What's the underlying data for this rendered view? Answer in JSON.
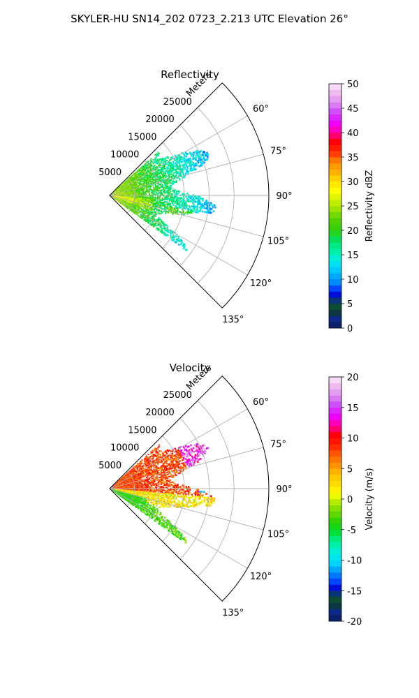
{
  "figure_title": "SKYLER-HU  SN14_202  0723_2.213 UTC Elevation 26°",
  "chart_data": [
    {
      "type": "heatmap",
      "projection": "polar-sector",
      "title": "Reflectivity",
      "range_label": "Meters",
      "range_ticks": [
        5000,
        10000,
        15000,
        20000,
        25000
      ],
      "rmax": 32000,
      "azimuth_range_deg": [
        45,
        135
      ],
      "azimuth_ticks": [
        "60°",
        "75°",
        "90°",
        "105°",
        "120°",
        "135°"
      ],
      "colorbar": {
        "label": "Reflectivity dBZ",
        "min": 0,
        "max": 50,
        "ticks": [
          0,
          5,
          10,
          15,
          20,
          25,
          30,
          35,
          40,
          45,
          50
        ]
      },
      "field": "reflectivity",
      "data_region": {
        "az_min_deg": 48,
        "az_max_deg": 126,
        "r_min": 0,
        "r_max": 21500
      }
    },
    {
      "type": "heatmap",
      "projection": "polar-sector",
      "title": "Velocity",
      "range_label": "Meters",
      "range_ticks": [
        5000,
        10000,
        15000,
        20000,
        25000
      ],
      "rmax": 32000,
      "azimuth_range_deg": [
        45,
        135
      ],
      "azimuth_ticks": [
        "60°",
        "75°",
        "90°",
        "105°",
        "120°",
        "135°"
      ],
      "colorbar": {
        "label": "Velocity (m/s)",
        "min": -20,
        "max": 20,
        "ticks": [
          -20,
          -15,
          -10,
          -5,
          0,
          5,
          10,
          15,
          20
        ]
      },
      "field": "velocity",
      "data_region": {
        "az_min_deg": 48,
        "az_max_deg": 126,
        "r_min": 0,
        "r_max": 21500
      }
    }
  ]
}
